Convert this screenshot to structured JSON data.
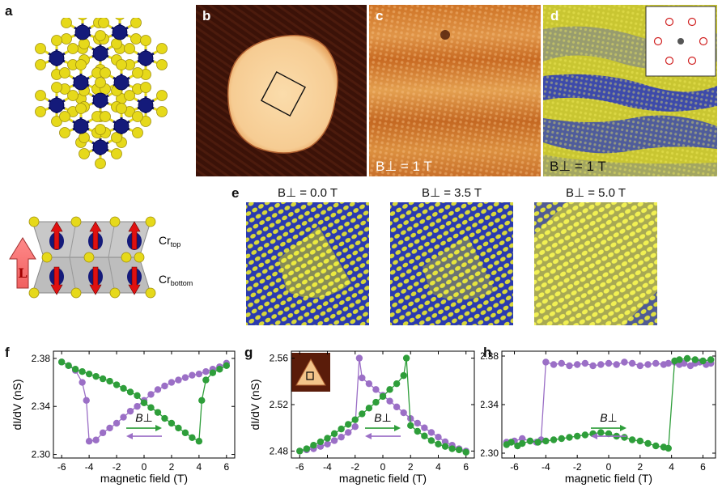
{
  "panel_letters": {
    "a": "a",
    "b": "b",
    "c": "c",
    "d": "d",
    "e": "e",
    "f": "f",
    "g": "g",
    "h": "h"
  },
  "image_labels": {
    "c_field": "B⊥ = 1 T",
    "d_field": "B⊥ = 1 T"
  },
  "panel_a_labels": {
    "L_arrow": "L",
    "cr_top": "Cr",
    "cr_top_sub": "top",
    "cr_bottom": "Cr",
    "cr_bottom_sub": "bottom"
  },
  "panel_e_titles": [
    "B⊥ = 0.0 T",
    "B⊥ = 3.5 T",
    "B⊥ = 5.0 T"
  ],
  "colors": {
    "purple": "#9b6fc6",
    "green": "#2e9e3a",
    "cr_blue": "#141a7a",
    "s_yellow": "#e6d91a",
    "stm_dark": "#3a1208",
    "stm_island": "#f6cf9a",
    "map_blue": "#2436c0",
    "map_yellow": "#e2e430"
  },
  "chart_data": [
    {
      "panel": "f",
      "type": "scatter",
      "xlabel": "magnetic field (T)",
      "ylabel": "dI/dV (nS)",
      "xlim": [
        -6.6,
        6.6
      ],
      "ylim": [
        2.297,
        2.386
      ],
      "xticks": [
        -6,
        -4,
        -2,
        0,
        2,
        4,
        6
      ],
      "yticks": [
        2.3,
        2.34,
        2.38
      ],
      "ytick_labels": [
        "2.30",
        "2.34",
        "2.38"
      ],
      "arrow_label": "B⊥",
      "series": [
        {
          "color": "purple",
          "x": [
            6,
            5.5,
            5,
            4.5,
            4,
            3.5,
            3,
            2.5,
            2,
            1.5,
            1,
            0.5,
            0,
            -0.5,
            -1,
            -1.5,
            -2,
            -2.5,
            -3,
            -3.5,
            -4,
            -4.2,
            -4.5,
            -5,
            -5.5,
            -6
          ],
          "y": [
            2.376,
            2.373,
            2.371,
            2.369,
            2.367,
            2.366,
            2.364,
            2.362,
            2.36,
            2.357,
            2.354,
            2.35,
            2.345,
            2.34,
            2.336,
            2.331,
            2.326,
            2.322,
            2.318,
            2.312,
            2.311,
            2.345,
            2.36,
            2.37,
            2.374,
            2.377
          ]
        },
        {
          "color": "green",
          "x": [
            -6,
            -5.5,
            -5,
            -4.5,
            -4,
            -3.5,
            -3,
            -2.5,
            -2,
            -1.5,
            -1,
            -0.5,
            0,
            0.5,
            1,
            1.5,
            2,
            2.5,
            3,
            3.5,
            4,
            4.2,
            4.5,
            5,
            5.5,
            6
          ],
          "y": [
            2.377,
            2.374,
            2.371,
            2.369,
            2.367,
            2.365,
            2.363,
            2.361,
            2.358,
            2.355,
            2.352,
            2.349,
            2.343,
            2.339,
            2.335,
            2.33,
            2.326,
            2.322,
            2.318,
            2.314,
            2.311,
            2.345,
            2.362,
            2.368,
            2.371,
            2.374
          ]
        }
      ]
    },
    {
      "panel": "g",
      "type": "scatter",
      "xlabel": "magnetic field (T)",
      "ylabel": "dI/dV (nS)",
      "xlim": [
        -6.6,
        6.6
      ],
      "ylim": [
        2.474,
        2.566
      ],
      "xticks": [
        -6,
        -4,
        -2,
        0,
        2,
        4,
        6
      ],
      "yticks": [
        2.48,
        2.52,
        2.56
      ],
      "ytick_labels": [
        "2.48",
        "2.52",
        "2.56"
      ],
      "arrow_label": "B⊥",
      "series": [
        {
          "color": "purple",
          "x": [
            6,
            5.5,
            5,
            4.5,
            4,
            3.5,
            3,
            2.5,
            2,
            1.5,
            1,
            0.5,
            0,
            -0.5,
            -1,
            -1.5,
            -1.7,
            -2,
            -2.5,
            -3,
            -3.5,
            -4,
            -4.5,
            -5,
            -5.5,
            -6
          ],
          "y": [
            2.48,
            2.482,
            2.485,
            2.488,
            2.492,
            2.496,
            2.5,
            2.504,
            2.508,
            2.513,
            2.518,
            2.523,
            2.528,
            2.533,
            2.538,
            2.543,
            2.56,
            2.501,
            2.496,
            2.492,
            2.489,
            2.486,
            2.484,
            2.482,
            2.481,
            2.48
          ]
        },
        {
          "color": "green",
          "x": [
            -6,
            -5.5,
            -5,
            -4.5,
            -4,
            -3.5,
            -3,
            -2.5,
            -2,
            -1.5,
            -1,
            -0.5,
            0,
            0.5,
            1,
            1.5,
            1.7,
            2,
            2.5,
            3,
            3.5,
            4,
            4.5,
            5,
            5.5,
            6
          ],
          "y": [
            2.48,
            2.482,
            2.485,
            2.488,
            2.491,
            2.495,
            2.499,
            2.503,
            2.507,
            2.512,
            2.517,
            2.522,
            2.527,
            2.533,
            2.538,
            2.545,
            2.56,
            2.502,
            2.497,
            2.493,
            2.489,
            2.486,
            2.484,
            2.482,
            2.481,
            2.479
          ]
        }
      ]
    },
    {
      "panel": "h",
      "type": "scatter",
      "xlabel": "magnetic field (T)",
      "ylabel": "",
      "xlim": [
        -6.8,
        6.8
      ],
      "ylim": [
        2.296,
        2.384
      ],
      "xticks": [
        -6,
        -4,
        -2,
        0,
        2,
        4,
        6
      ],
      "yticks": [
        2.3,
        2.34,
        2.38
      ],
      "ytick_labels": [
        "2.30",
        "2.34",
        "2.38"
      ],
      "arrow_label": "B⊥",
      "series": [
        {
          "color": "purple",
          "x": [
            6.5,
            6.2,
            5.8,
            5.5,
            5.2,
            4.8,
            4.5,
            4.2,
            3.8,
            3.5,
            3,
            2.5,
            2,
            1.5,
            1,
            0.5,
            0,
            -0.5,
            -1,
            -1.5,
            -2,
            -2.5,
            -3,
            -3.5,
            -4,
            -4.3,
            -4.6,
            -5,
            -5.5,
            -6,
            -6.5
          ],
          "y": [
            2.374,
            2.373,
            2.375,
            2.374,
            2.372,
            2.374,
            2.373,
            2.375,
            2.374,
            2.373,
            2.374,
            2.373,
            2.372,
            2.374,
            2.375,
            2.373,
            2.374,
            2.373,
            2.372,
            2.374,
            2.373,
            2.372,
            2.374,
            2.373,
            2.375,
            2.311,
            2.309,
            2.31,
            2.312,
            2.31,
            2.309
          ]
        },
        {
          "color": "green",
          "x": [
            -6.5,
            -6.2,
            -5.8,
            -5.5,
            -5,
            -4.5,
            -4,
            -3.5,
            -3,
            -2.5,
            -2,
            -1.5,
            -1,
            -0.5,
            0,
            0.5,
            1,
            1.5,
            2,
            2.5,
            3,
            3.5,
            3.8,
            4.2,
            4.5,
            5,
            5.5,
            6,
            6.5
          ],
          "y": [
            2.307,
            2.309,
            2.306,
            2.308,
            2.31,
            2.309,
            2.31,
            2.311,
            2.312,
            2.313,
            2.314,
            2.315,
            2.316,
            2.317,
            2.316,
            2.314,
            2.313,
            2.311,
            2.31,
            2.308,
            2.306,
            2.305,
            2.304,
            2.376,
            2.377,
            2.378,
            2.377,
            2.376,
            2.377
          ]
        }
      ]
    }
  ]
}
